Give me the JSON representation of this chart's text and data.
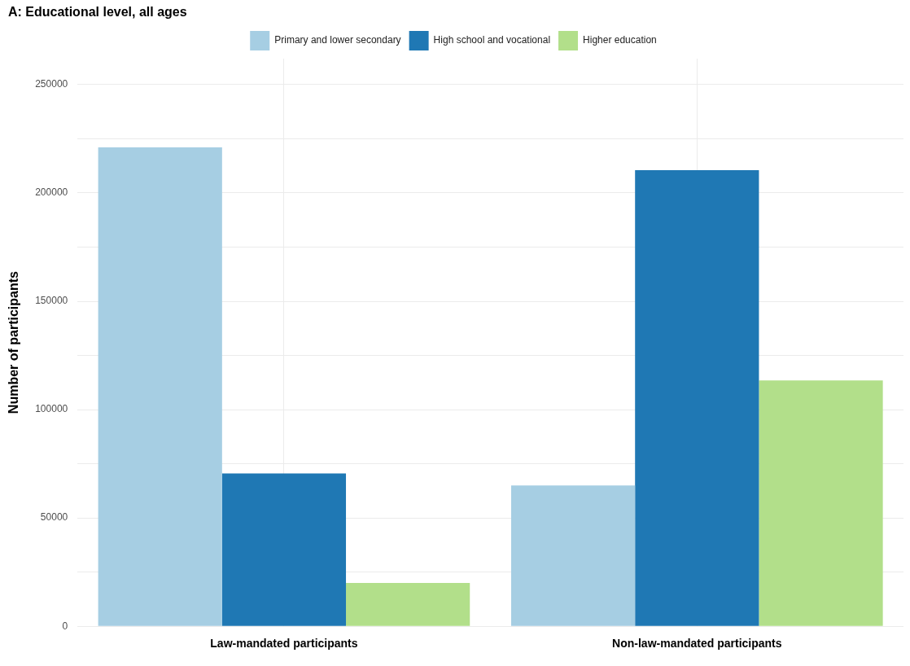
{
  "chart_data": {
    "type": "bar",
    "title": "A: Educational level, all ages",
    "ylabel": "Number of participants",
    "categories": [
      "Law-mandated participants",
      "Non-law-mandated participants"
    ],
    "series": [
      {
        "name": "Primary and lower secondary",
        "color": "#a6cee3",
        "values": [
          221000,
          65000
        ]
      },
      {
        "name": "High school and vocational",
        "color": "#1f78b4",
        "values": [
          70500,
          210500
        ]
      },
      {
        "name": "Higher education",
        "color": "#b2df8a",
        "values": [
          20000,
          113500
        ]
      }
    ],
    "ylim": [
      0,
      262000
    ],
    "yticks": [
      0,
      {
        "value": 25000,
        "label": null
      },
      50000,
      {
        "value": 75000,
        "label": null
      },
      100000,
      {
        "value": 125000,
        "label": null
      },
      150000,
      {
        "value": 175000,
        "label": null
      },
      200000,
      {
        "value": 225000,
        "label": null
      },
      250000
    ],
    "grid": true,
    "legend": "top"
  }
}
